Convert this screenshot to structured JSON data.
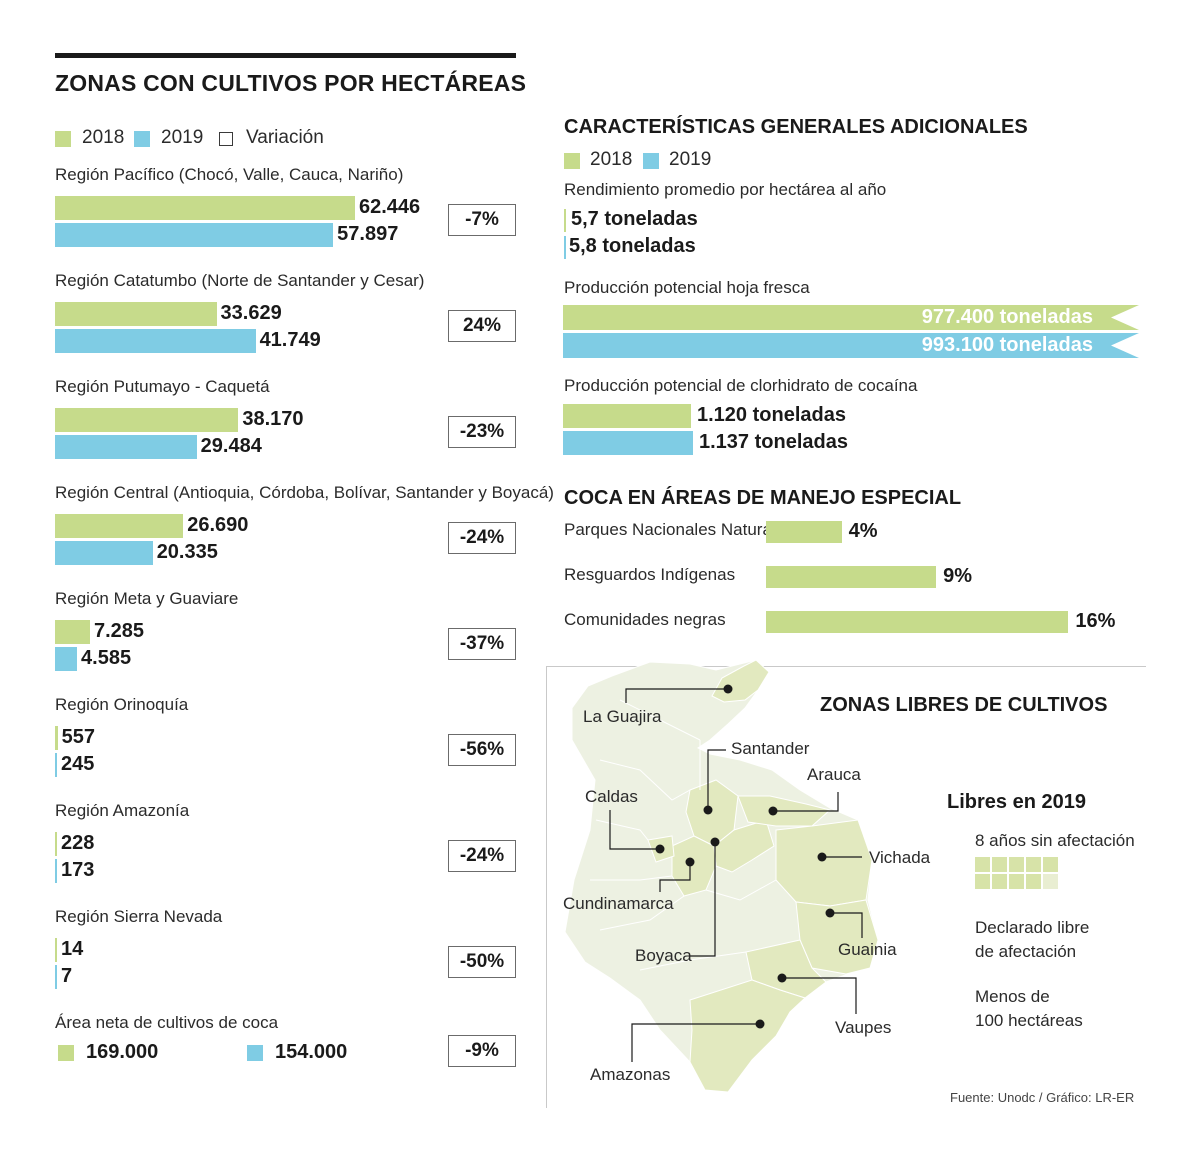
{
  "left": {
    "title": "ZONAS CON CULTIVOS POR HECTÁREAS",
    "legend": {
      "y2018": "2018",
      "y2019": "2019",
      "variation": "Variación"
    },
    "colors": {
      "y2018": "#c6db8b",
      "y2019": "#7fcce4"
    }
  },
  "chart_data": [
    {
      "type": "bar",
      "title": "ZONAS CON CULTIVOS POR HECTÁREAS",
      "series_names": [
        "2018",
        "2019"
      ],
      "categories": [
        "Región Pacífico (Chocó, Valle, Cauca, Nariño)",
        "Región Catatumbo (Norte de Santander y Cesar)",
        "Región Putumayo - Caquetá",
        "Región Central (Antioquia, Córdoba, Bolívar, Santander y Boyacá)",
        "Región Meta y Guaviare",
        "Región Orinoquía",
        "Región Amazonía",
        "Región Sierra Nevada"
      ],
      "regions": [
        {
          "name": "Región Pacífico (Chocó, Valle, Cauca, Nariño)",
          "v2018": 62446,
          "v2019": 57897,
          "l2018": "62.446",
          "l2019": "57.897",
          "variation": "-7%"
        },
        {
          "name": "Región Catatumbo (Norte de Santander y Cesar)",
          "v2018": 33629,
          "v2019": 41749,
          "l2018": "33.629",
          "l2019": "41.749",
          "variation": "24%"
        },
        {
          "name": "Región Putumayo - Caquetá",
          "v2018": 38170,
          "v2019": 29484,
          "l2018": "38.170",
          "l2019": "29.484",
          "variation": "-23%"
        },
        {
          "name": "Región Central (Antioquia, Córdoba, Bolívar, Santander y Boyacá)",
          "v2018": 26690,
          "v2019": 20335,
          "l2018": "26.690",
          "l2019": "20.335",
          "variation": "-24%"
        },
        {
          "name": "Región Meta y Guaviare",
          "v2018": 7285,
          "v2019": 4585,
          "l2018": "7.285",
          "l2019": "4.585",
          "variation": "-37%"
        },
        {
          "name": "Región Orinoquía",
          "v2018": 557,
          "v2019": 245,
          "l2018": "557",
          "l2019": "245",
          "variation": "-56%"
        },
        {
          "name": "Región Amazonía",
          "v2018": 228,
          "v2019": 173,
          "l2018": "228",
          "l2019": "173",
          "variation": "-24%"
        },
        {
          "name": "Región Sierra Nevada",
          "v2018": 14,
          "v2019": 7,
          "l2018": "14",
          "l2019": "7",
          "variation": "-50%"
        }
      ],
      "total": {
        "label": "Área neta de cultivos de coca",
        "v2018": 169000,
        "v2019": 154000,
        "l2018": "169.000",
        "l2019": "154.000",
        "variation": "-9%"
      }
    },
    {
      "type": "bar",
      "title": "CARACTERÍSTICAS GENERALES ADICIONALES",
      "series_names": [
        "2018",
        "2019"
      ],
      "groups": [
        {
          "label": "Rendimiento promedio por hectárea al año",
          "v2018": 5.7,
          "v2019": 5.8,
          "l2018": "5,7 toneladas",
          "l2019": "5,8 toneladas"
        },
        {
          "label": "Producción potencial hoja fresca",
          "v2018": 977400,
          "v2019": 993100,
          "l2018": "977.400 toneladas",
          "l2019": "993.100 toneladas"
        },
        {
          "label": "Producción potencial de clorhidrato de cocaína",
          "v2018": 1120,
          "v2019": 1137,
          "l2018": "1.120 toneladas",
          "l2019": "1.137 toneladas"
        }
      ]
    },
    {
      "type": "bar",
      "title": "COCA EN ÁREAS DE MANEJO ESPECIAL",
      "categories": [
        "Parques Nacionales Naturales",
        "Resguardos Indígenas",
        "Comunidades negras"
      ],
      "values": [
        4,
        9,
        16
      ],
      "labels": [
        "4%",
        "9%",
        "16%"
      ]
    }
  ],
  "right": {
    "title": "CARACTERÍSTICAS GENERALES ADICIONALES",
    "legend": {
      "y2018": "2018",
      "y2019": "2019"
    },
    "special_title": "COCA EN ÁREAS DE MANEJO ESPECIAL"
  },
  "map": {
    "title": "ZONAS LIBRES DE CULTIVOS",
    "legend_title": "Libres en 2019",
    "legend_items": [
      "8 años sin afectación",
      "Declarado libre de afectación",
      "Menos de 100 hectáreas"
    ],
    "legend_lines": [
      "8 años sin afectación",
      "Declarado libre",
      "de afectación",
      "Menos de",
      "100 hectáreas"
    ],
    "places": [
      "La Guajira",
      "Santander",
      "Arauca",
      "Caldas",
      "Vichada",
      "Cundinamarca",
      "Guainia",
      "Boyaca",
      "Vaupes",
      "Amazonas"
    ],
    "colors": {
      "land": "#edf1e2",
      "free": "#e2e9bf",
      "dept_line": "#ffffff"
    }
  },
  "source": "Fuente: Unodc / Gráfico: LR-ER"
}
